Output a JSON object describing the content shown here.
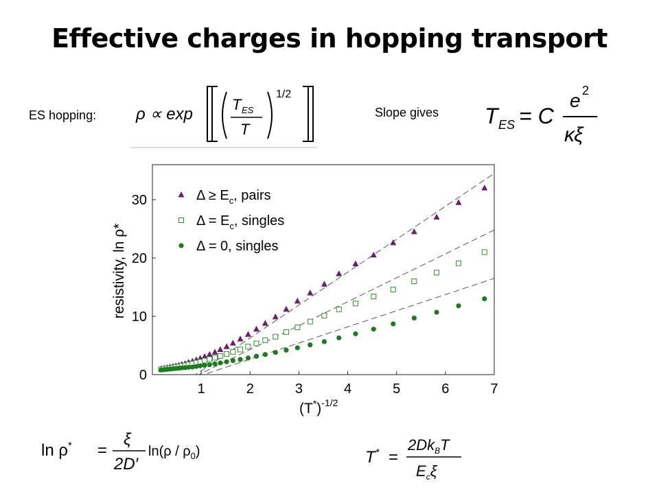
{
  "slide": {
    "title": "Effective charges in hopping transport",
    "es_label": "ES hopping:",
    "slope_label": "Slope gives"
  },
  "equations": {
    "rho": "ρ ∝ exp",
    "t_es_num": "T",
    "t_es_num_sub": "ES",
    "t_es_den": "T",
    "exponent": "1/2",
    "tes_lhs": "T",
    "tes_lhs_sub": "ES",
    "tes_eq": "= C",
    "tes_num": "e",
    "tes_num_sup": "2",
    "tes_den": "κξ",
    "lnrho_lhs": "ln ρ",
    "lnrho_star": "*",
    "lnrho_eq": "=",
    "lnrho_num": "ξ",
    "lnrho_den": "2D′",
    "lnrho_rhs": "ln(ρ / ρ",
    "lnrho_rhs_sub": "0",
    "lnrho_close": ")",
    "tstar_lhs": "T",
    "tstar_star": "*",
    "tstar_eq": "=",
    "tstar_num": "2Dk",
    "tstar_num_sub": "B",
    "tstar_num_tail": "T",
    "tstar_den": "E",
    "tstar_den_sub": "c",
    "tstar_den_tail": "ξ"
  },
  "chart_data": {
    "type": "scatter",
    "xlabel": "(T*)-1/2",
    "xlabel_base": "(T",
    "xlabel_star": "*",
    "xlabel_close": ")",
    "xlabel_sup": "-1/2",
    "ylabel": "resistivity, ln ρ*",
    "xlim": [
      0,
      7
    ],
    "ylim": [
      0,
      36
    ],
    "xticks": [
      1,
      2,
      3,
      4,
      5,
      6,
      7
    ],
    "yticks": [
      0,
      10,
      20,
      30
    ],
    "grid": false,
    "legend_position": "top-left",
    "series": [
      {
        "name": "Δ ≥ Ec, pairs",
        "legend_prefix": "Δ ≥ E",
        "legend_sub": "c",
        "legend_suffix": ", pairs",
        "marker": "triangle",
        "color": "#6b1f73",
        "x": [
          0.18,
          0.24,
          0.3,
          0.36,
          0.42,
          0.48,
          0.54,
          0.6,
          0.67,
          0.74,
          0.82,
          0.9,
          0.98,
          1.07,
          1.17,
          1.28,
          1.39,
          1.52,
          1.65,
          1.8,
          1.96,
          2.13,
          2.31,
          2.52,
          2.74,
          2.97,
          3.23,
          3.52,
          3.82,
          4.16,
          4.53,
          4.93,
          5.36,
          5.82,
          6.27,
          6.8
        ],
        "y": [
          1.0,
          1.1,
          1.2,
          1.3,
          1.4,
          1.5,
          1.6,
          1.75,
          1.9,
          2.1,
          2.3,
          2.55,
          2.8,
          3.1,
          3.45,
          3.85,
          4.3,
          4.8,
          5.4,
          6.1,
          6.9,
          7.8,
          8.8,
          9.9,
          11.2,
          12.6,
          14.0,
          15.5,
          17.3,
          19.0,
          20.5,
          22.6,
          24.5,
          27.0,
          29.5,
          32.0
        ]
      },
      {
        "name": "Δ = Ec, singles",
        "legend_prefix": "Δ = E",
        "legend_sub": "c",
        "legend_suffix": ", singles",
        "marker": "square",
        "color": "#2e8b2e",
        "x": [
          0.18,
          0.24,
          0.3,
          0.36,
          0.42,
          0.48,
          0.54,
          0.6,
          0.67,
          0.74,
          0.82,
          0.9,
          0.98,
          1.07,
          1.17,
          1.28,
          1.39,
          1.52,
          1.65,
          1.8,
          1.96,
          2.13,
          2.31,
          2.52,
          2.74,
          2.97,
          3.23,
          3.52,
          3.82,
          4.16,
          4.53,
          4.93,
          5.36,
          5.82,
          6.27,
          6.8
        ],
        "y": [
          0.9,
          1.0,
          1.05,
          1.1,
          1.2,
          1.3,
          1.4,
          1.5,
          1.6,
          1.75,
          1.9,
          2.05,
          2.2,
          2.4,
          2.65,
          2.9,
          3.2,
          3.55,
          3.9,
          4.3,
          4.8,
          5.35,
          5.9,
          6.5,
          7.3,
          8.1,
          9.1,
          10.1,
          11.2,
          12.2,
          13.4,
          14.6,
          16.0,
          17.5,
          19.1,
          21.0
        ]
      },
      {
        "name": "Δ = 0, singles",
        "legend_prefix": "Δ = 0, singles",
        "legend_sub": "",
        "legend_suffix": "",
        "marker": "circle",
        "color": "#1e7a1e",
        "x": [
          0.18,
          0.24,
          0.3,
          0.36,
          0.42,
          0.48,
          0.54,
          0.6,
          0.67,
          0.74,
          0.82,
          0.9,
          0.98,
          1.07,
          1.17,
          1.28,
          1.39,
          1.52,
          1.65,
          1.8,
          1.96,
          2.13,
          2.31,
          2.52,
          2.74,
          2.97,
          3.23,
          3.52,
          3.82,
          4.16,
          4.53,
          4.93,
          5.36,
          5.82,
          6.27,
          6.8
        ],
        "y": [
          0.8,
          0.85,
          0.9,
          0.95,
          1.0,
          1.05,
          1.1,
          1.15,
          1.2,
          1.25,
          1.3,
          1.4,
          1.5,
          1.6,
          1.7,
          1.85,
          2.0,
          2.2,
          2.4,
          2.6,
          2.85,
          3.15,
          3.45,
          3.8,
          4.2,
          4.6,
          5.1,
          5.65,
          6.3,
          7.0,
          7.8,
          8.7,
          9.7,
          10.7,
          11.8,
          13.0
        ]
      }
    ],
    "fit_lines": [
      {
        "color": "#555555",
        "x": [
          0.0,
          7.0
        ],
        "y": [
          -5.0,
          34.5
        ]
      },
      {
        "color": "#555555",
        "x": [
          0.0,
          7.0
        ],
        "y": [
          -3.9,
          24.8
        ]
      },
      {
        "color": "#555555",
        "x": [
          0.0,
          7.0
        ],
        "y": [
          -2.9,
          16.5
        ]
      }
    ]
  }
}
